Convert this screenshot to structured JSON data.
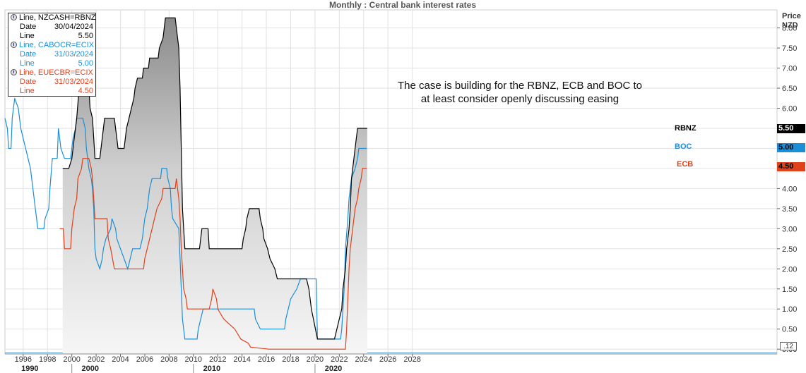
{
  "title": "Monthly : Central bank interest rates",
  "price_header": {
    "line1": "Price",
    "line2": "NZD"
  },
  "annotation": {
    "line1": "The case is building for the RBNZ, ECB and BOC to",
    "line2": "at least consider openly discussing easing"
  },
  "legend": [
    {
      "name": "Line, NZCASH=RBNZ",
      "date_label": "Date",
      "date": "30/04/2024",
      "line_label": "Line",
      "value": "5.50",
      "color": "#000000"
    },
    {
      "name": "Line, CABOCR=ECIX",
      "date_label": "Date",
      "date": "31/03/2024",
      "line_label": "Line",
      "value": "5.00",
      "color": "#1a8fd8"
    },
    {
      "name": "Line, EUECBR=ECIX",
      "date_label": "Date",
      "date": "31/03/2024",
      "line_label": "Line",
      "value": "4.50",
      "color": "#e0401a"
    }
  ],
  "series_labels": {
    "rbnz": "RBNZ",
    "boc": "BOC",
    "ecb": "ECB"
  },
  "price_tags": {
    "rbnz": "5.50",
    "boc": "5.00",
    "ecb": "4.50"
  },
  "zero_tag": ".12",
  "colors": {
    "rbnz": "#000000",
    "boc": "#1a8fd8",
    "ecb": "#e0401a",
    "grid": "#e2e2e2",
    "zero_line": "#4aa0d0"
  },
  "chart_data": {
    "type": "line",
    "title": "Monthly : Central bank interest rates",
    "xlabel": "",
    "ylabel": "Price NZD",
    "xlim": [
      1994.5,
      2058
    ],
    "ylim": [
      -0.12,
      8.45
    ],
    "y_ticks": [
      "0.00",
      "0.50",
      "1.00",
      "1.50",
      "2.00",
      "2.50",
      "3.00",
      "3.50",
      "4.00",
      "4.50",
      "5.00",
      "5.50",
      "6.00",
      "6.50",
      "7.00",
      "7.50",
      "8.00"
    ],
    "x_ticks": [
      "1996",
      "1998",
      "2000",
      "2002",
      "2004",
      "2006",
      "2008",
      "2010",
      "2012",
      "2014",
      "2016",
      "2018",
      "2020",
      "2022",
      "2024",
      "2026",
      "2028"
    ],
    "decade_labels": [
      "1990",
      "2000",
      "2010",
      "2020"
    ],
    "grid": true,
    "series": [
      {
        "name": "RBNZ",
        "area_fill": true,
        "points": [
          [
            1999.25,
            4.5
          ],
          [
            1999.75,
            4.5
          ],
          [
            2000.0,
            4.75
          ],
          [
            2000.2,
            5.25
          ],
          [
            2000.4,
            5.75
          ],
          [
            2000.6,
            6.5
          ],
          [
            2001.4,
            6.5
          ],
          [
            2001.5,
            6.0
          ],
          [
            2001.7,
            5.75
          ],
          [
            2001.8,
            5.25
          ],
          [
            2001.9,
            4.75
          ],
          [
            2002.3,
            4.75
          ],
          [
            2002.4,
            5.0
          ],
          [
            2002.5,
            5.25
          ],
          [
            2002.6,
            5.5
          ],
          [
            2002.7,
            5.75
          ],
          [
            2003.5,
            5.75
          ],
          [
            2003.6,
            5.5
          ],
          [
            2003.7,
            5.25
          ],
          [
            2003.8,
            5.0
          ],
          [
            2004.3,
            5.0
          ],
          [
            2004.4,
            5.25
          ],
          [
            2004.5,
            5.5
          ],
          [
            2004.7,
            5.75
          ],
          [
            2004.9,
            6.0
          ],
          [
            2005.1,
            6.25
          ],
          [
            2005.2,
            6.5
          ],
          [
            2005.4,
            6.75
          ],
          [
            2005.8,
            6.75
          ],
          [
            2005.9,
            7.0
          ],
          [
            2006.3,
            7.0
          ],
          [
            2006.4,
            7.25
          ],
          [
            2007.1,
            7.25
          ],
          [
            2007.2,
            7.5
          ],
          [
            2007.5,
            7.75
          ],
          [
            2007.6,
            8.0
          ],
          [
            2007.7,
            8.25
          ],
          [
            2008.5,
            8.25
          ],
          [
            2008.6,
            8.0
          ],
          [
            2008.8,
            7.5
          ],
          [
            2008.9,
            6.5
          ],
          [
            2009.0,
            5.0
          ],
          [
            2009.1,
            3.5
          ],
          [
            2009.2,
            3.0
          ],
          [
            2009.3,
            2.5
          ],
          [
            2010.5,
            2.5
          ],
          [
            2010.6,
            2.75
          ],
          [
            2010.7,
            3.0
          ],
          [
            2011.2,
            3.0
          ],
          [
            2011.3,
            2.5
          ],
          [
            2014.0,
            2.5
          ],
          [
            2014.1,
            2.75
          ],
          [
            2014.3,
            3.0
          ],
          [
            2014.4,
            3.25
          ],
          [
            2014.6,
            3.5
          ],
          [
            2015.4,
            3.5
          ],
          [
            2015.5,
            3.25
          ],
          [
            2015.7,
            3.0
          ],
          [
            2015.8,
            2.75
          ],
          [
            2016.1,
            2.5
          ],
          [
            2016.3,
            2.25
          ],
          [
            2016.7,
            2.0
          ],
          [
            2016.9,
            1.75
          ],
          [
            2019.3,
            1.75
          ],
          [
            2019.5,
            1.5
          ],
          [
            2019.7,
            1.0
          ],
          [
            2020.2,
            0.25
          ],
          [
            2021.6,
            0.25
          ],
          [
            2021.8,
            0.5
          ],
          [
            2022.0,
            0.75
          ],
          [
            2022.2,
            1.0
          ],
          [
            2022.3,
            1.5
          ],
          [
            2022.5,
            2.0
          ],
          [
            2022.6,
            2.5
          ],
          [
            2022.8,
            3.0
          ],
          [
            2022.9,
            3.5
          ],
          [
            2023.0,
            4.25
          ],
          [
            2023.2,
            4.75
          ],
          [
            2023.4,
            5.25
          ],
          [
            2023.5,
            5.5
          ],
          [
            2024.3,
            5.5
          ]
        ]
      },
      {
        "name": "BOC",
        "points": [
          [
            1994.5,
            5.75
          ],
          [
            1994.7,
            5.5
          ],
          [
            1994.8,
            5.0
          ],
          [
            1995.0,
            5.0
          ],
          [
            1995.1,
            5.75
          ],
          [
            1995.3,
            6.25
          ],
          [
            1995.6,
            6.0
          ],
          [
            1995.8,
            5.5
          ],
          [
            1996.0,
            5.25
          ],
          [
            1996.2,
            5.0
          ],
          [
            1996.4,
            4.75
          ],
          [
            1996.6,
            4.5
          ],
          [
            1996.8,
            4.0
          ],
          [
            1996.9,
            3.75
          ],
          [
            1997.0,
            3.5
          ],
          [
            1997.1,
            3.25
          ],
          [
            1997.2,
            3.0
          ],
          [
            1997.7,
            3.0
          ],
          [
            1997.8,
            3.25
          ],
          [
            1998.1,
            3.5
          ],
          [
            1998.2,
            4.0
          ],
          [
            1998.4,
            4.75
          ],
          [
            1998.6,
            4.75
          ],
          [
            1998.8,
            4.75
          ],
          [
            1998.9,
            5.5
          ],
          [
            1999.0,
            5.25
          ],
          [
            1999.1,
            5.0
          ],
          [
            1999.4,
            4.75
          ],
          [
            1999.9,
            4.75
          ],
          [
            2000.0,
            5.0
          ],
          [
            2000.1,
            5.25
          ],
          [
            2000.3,
            5.5
          ],
          [
            2000.4,
            5.75
          ],
          [
            2000.9,
            5.75
          ],
          [
            2001.1,
            5.5
          ],
          [
            2001.2,
            5.0
          ],
          [
            2001.4,
            4.5
          ],
          [
            2001.6,
            4.25
          ],
          [
            2001.7,
            4.0
          ],
          [
            2001.8,
            3.5
          ],
          [
            2001.9,
            2.5
          ],
          [
            2002.0,
            2.25
          ],
          [
            2002.3,
            2.0
          ],
          [
            2002.5,
            2.25
          ],
          [
            2002.6,
            2.5
          ],
          [
            2002.8,
            2.75
          ],
          [
            2003.2,
            3.0
          ],
          [
            2003.3,
            3.25
          ],
          [
            2003.6,
            3.0
          ],
          [
            2003.7,
            2.75
          ],
          [
            2004.0,
            2.5
          ],
          [
            2004.3,
            2.25
          ],
          [
            2004.6,
            2.0
          ],
          [
            2004.8,
            2.25
          ],
          [
            2005.0,
            2.5
          ],
          [
            2005.6,
            2.5
          ],
          [
            2005.8,
            2.75
          ],
          [
            2006.0,
            3.25
          ],
          [
            2006.2,
            3.5
          ],
          [
            2006.4,
            4.0
          ],
          [
            2006.6,
            4.25
          ],
          [
            2007.3,
            4.25
          ],
          [
            2007.4,
            4.5
          ],
          [
            2007.8,
            4.5
          ],
          [
            2007.9,
            4.25
          ],
          [
            2008.1,
            4.0
          ],
          [
            2008.2,
            3.5
          ],
          [
            2008.3,
            3.25
          ],
          [
            2008.8,
            3.0
          ],
          [
            2008.9,
            2.25
          ],
          [
            2009.0,
            1.5
          ],
          [
            2009.1,
            0.75
          ],
          [
            2009.2,
            0.5
          ],
          [
            2009.3,
            0.25
          ],
          [
            2010.3,
            0.25
          ],
          [
            2010.4,
            0.5
          ],
          [
            2010.6,
            0.75
          ],
          [
            2010.8,
            1.0
          ],
          [
            2015.0,
            1.0
          ],
          [
            2015.1,
            0.75
          ],
          [
            2015.5,
            0.5
          ],
          [
            2017.5,
            0.5
          ],
          [
            2017.6,
            0.75
          ],
          [
            2017.8,
            1.0
          ],
          [
            2018.0,
            1.25
          ],
          [
            2018.5,
            1.5
          ],
          [
            2018.8,
            1.75
          ],
          [
            2020.1,
            1.75
          ],
          [
            2020.2,
            0.25
          ],
          [
            2022.1,
            0.25
          ],
          [
            2022.2,
            0.5
          ],
          [
            2022.3,
            1.0
          ],
          [
            2022.4,
            1.5
          ],
          [
            2022.5,
            2.5
          ],
          [
            2022.7,
            3.25
          ],
          [
            2022.8,
            3.75
          ],
          [
            2023.0,
            4.25
          ],
          [
            2023.3,
            4.5
          ],
          [
            2023.5,
            4.75
          ],
          [
            2023.6,
            5.0
          ],
          [
            2024.25,
            5.0
          ]
        ]
      },
      {
        "name": "ECB",
        "points": [
          [
            1999.0,
            3.0
          ],
          [
            1999.3,
            3.0
          ],
          [
            1999.4,
            2.5
          ],
          [
            1999.9,
            2.5
          ],
          [
            2000.0,
            3.0
          ],
          [
            2000.2,
            3.5
          ],
          [
            2000.4,
            3.75
          ],
          [
            2000.5,
            4.25
          ],
          [
            2000.8,
            4.5
          ],
          [
            2000.9,
            4.75
          ],
          [
            2001.4,
            4.75
          ],
          [
            2001.6,
            4.5
          ],
          [
            2001.7,
            4.25
          ],
          [
            2001.8,
            3.75
          ],
          [
            2001.9,
            3.25
          ],
          [
            2002.9,
            3.25
          ],
          [
            2003.0,
            2.75
          ],
          [
            2003.2,
            2.5
          ],
          [
            2003.5,
            2.0
          ],
          [
            2005.9,
            2.0
          ],
          [
            2006.0,
            2.25
          ],
          [
            2006.2,
            2.5
          ],
          [
            2006.4,
            2.75
          ],
          [
            2006.6,
            3.0
          ],
          [
            2006.8,
            3.25
          ],
          [
            2007.0,
            3.5
          ],
          [
            2007.4,
            3.75
          ],
          [
            2007.5,
            4.0
          ],
          [
            2008.5,
            4.0
          ],
          [
            2008.6,
            4.25
          ],
          [
            2008.8,
            3.75
          ],
          [
            2008.9,
            3.25
          ],
          [
            2009.0,
            2.5
          ],
          [
            2009.1,
            2.0
          ],
          [
            2009.2,
            1.5
          ],
          [
            2009.4,
            1.25
          ],
          [
            2009.5,
            1.0
          ],
          [
            2011.3,
            1.0
          ],
          [
            2011.5,
            1.25
          ],
          [
            2011.6,
            1.5
          ],
          [
            2011.9,
            1.25
          ],
          [
            2012.0,
            1.0
          ],
          [
            2012.5,
            0.75
          ],
          [
            2013.4,
            0.5
          ],
          [
            2013.9,
            0.25
          ],
          [
            2014.5,
            0.15
          ],
          [
            2014.7,
            0.05
          ],
          [
            2016.2,
            0.0
          ],
          [
            2022.5,
            0.0
          ],
          [
            2022.6,
            0.5
          ],
          [
            2022.7,
            1.25
          ],
          [
            2022.8,
            2.0
          ],
          [
            2022.9,
            2.5
          ],
          [
            2023.1,
            3.0
          ],
          [
            2023.3,
            3.5
          ],
          [
            2023.5,
            3.75
          ],
          [
            2023.6,
            4.0
          ],
          [
            2023.8,
            4.25
          ],
          [
            2023.9,
            4.5
          ],
          [
            2024.25,
            4.5
          ]
        ]
      }
    ]
  }
}
